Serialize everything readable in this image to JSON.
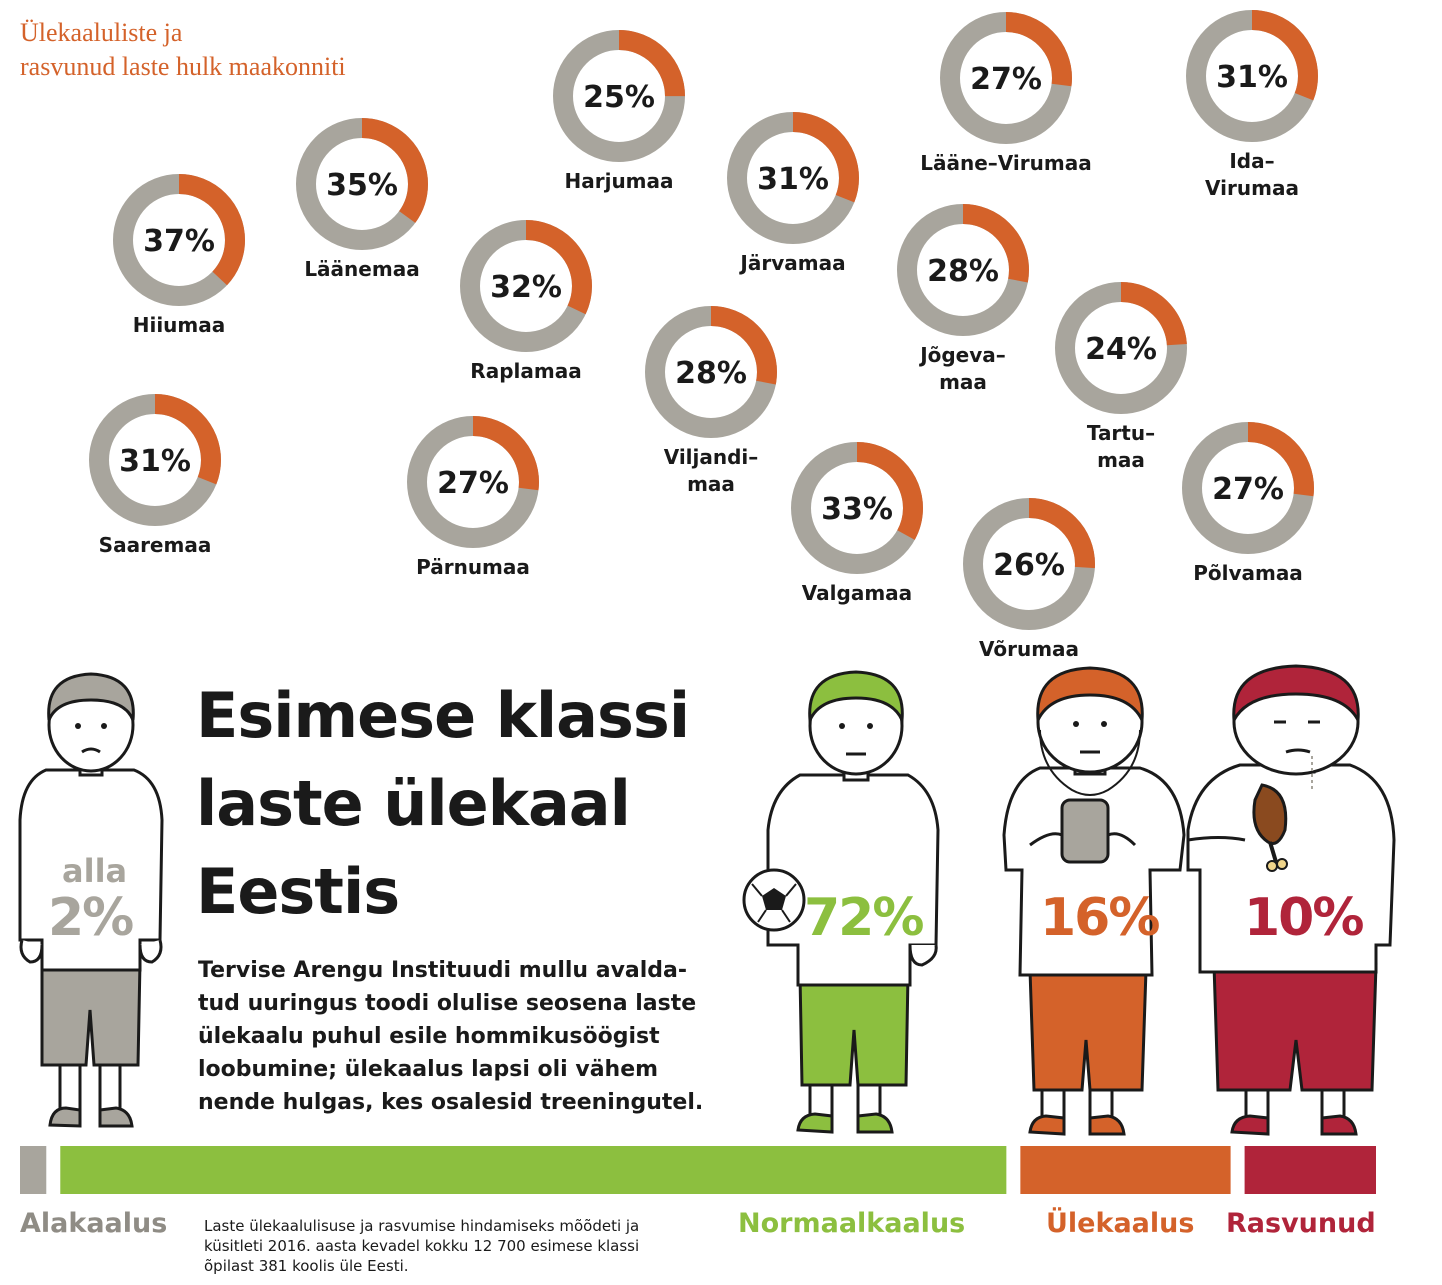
{
  "colors": {
    "orange": "#d4622a",
    "grey": "#a8a59d",
    "green": "#8cbf3f",
    "red": "#b0243a",
    "dark": "#1a1a1a"
  },
  "subtitle": [
    "Ülekaaluliste ja",
    "rasvunud laste hulk maakonniti"
  ],
  "headline": [
    "Esimese klassi",
    "laste ülekaal",
    "Eestis"
  ],
  "body_text": [
    "Tervise Arengu Instituudi mullu avalda-",
    "tud uuringus toodi olulise seosena laste",
    "ülekaalu puhul esile hommikusöögist",
    "loobumine; ülekaalus lapsi oli vähem",
    "nende hulgas, kes osalesid treeningutel."
  ],
  "footnote": [
    "Laste ülekaalulisuse ja rasvumise hindamiseks mõõdeti ja",
    "küsitleti 2016. aasta kevadel kokku 12 700 esimese klassi",
    "õpilast 381 koolis üle Eesti."
  ],
  "figures": {
    "under": {
      "prefix": "alla",
      "value": "2%"
    },
    "normal": {
      "value": "72%"
    },
    "over": {
      "value": "16%"
    },
    "obese": {
      "value": "10%"
    }
  },
  "chart_data": [
    {
      "type": "pie",
      "title": "Ülekaaluliste ja rasvunud laste hulk maakonniti",
      "unit": "%",
      "series": [
        {
          "name": "Hiiumaa",
          "label": "Hiiumaa",
          "value": 37,
          "text": "37%"
        },
        {
          "name": "Läänemaa",
          "label": "Läänemaa",
          "value": 35,
          "text": "35%"
        },
        {
          "name": "Harjumaa",
          "label": "Harjumaa",
          "value": 25,
          "text": "25%"
        },
        {
          "name": "Raplamaa",
          "label": "Raplamaa",
          "value": 32,
          "text": "32%"
        },
        {
          "name": "Järvamaa",
          "label": "Järvamaa",
          "value": 31,
          "text": "31%"
        },
        {
          "name": "Lääne-Virumaa",
          "label": "Lääne–Virumaa",
          "value": 27,
          "text": "27%"
        },
        {
          "name": "Ida-Virumaa",
          "label": "Ida–|Virumaa",
          "value": 31,
          "text": "31%"
        },
        {
          "name": "Jõgevamaa",
          "label": "Jõgeva–|maa",
          "value": 28,
          "text": "28%"
        },
        {
          "name": "Viljandimaa",
          "label": "Viljandi–|maa",
          "value": 28,
          "text": "28%"
        },
        {
          "name": "Tartumaa",
          "label": "Tartu–|maa",
          "value": 24,
          "text": "24%"
        },
        {
          "name": "Saaremaa",
          "label": "Saaremaa",
          "value": 31,
          "text": "31%"
        },
        {
          "name": "Pärnumaa",
          "label": "Pärnumaa",
          "value": 27,
          "text": "27%"
        },
        {
          "name": "Valgamaa",
          "label": "Valgamaa",
          "value": 33,
          "text": "33%"
        },
        {
          "name": "Võrumaa",
          "label": "Võrumaa",
          "value": 26,
          "text": "26%"
        },
        {
          "name": "Põlvamaa",
          "label": "Põlvamaa",
          "value": 27,
          "text": "27%"
        }
      ]
    },
    {
      "type": "bar",
      "title": "Esimese klassi laste ülekaal Eestis",
      "orientation": "horizontal-stacked",
      "categories": [
        "Alakaalus",
        "Normaalkaalus",
        "Ülekaalus",
        "Rasvunud"
      ],
      "values": [
        2,
        72,
        16,
        10
      ],
      "value_labels": [
        "alla 2%",
        "72%",
        "16%",
        "10%"
      ],
      "unit": "%"
    }
  ]
}
